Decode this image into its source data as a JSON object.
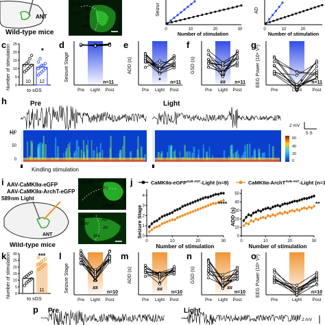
{
  "panel_labels": {
    "c": "c",
    "d": "d",
    "e": "e",
    "f": "f",
    "g": "g",
    "h": "h",
    "i": "i",
    "j": "j",
    "k": "k",
    "l": "l",
    "m": "m",
    "n": "n",
    "o": "o",
    "p": "p"
  },
  "top": {
    "wild_type": "Wild-type mice",
    "ant": "ANT",
    "efp": "EYFP",
    "d3v": "D3V",
    "ad": "AD",
    "av": "AV",
    "am": "AM",
    "seiz_lbl": "Seizur",
    "ad_lbl": "AD",
    "x_label": "Number of stimulation",
    "ticks_a": [
      "0",
      "10",
      "20",
      "30"
    ],
    "ticks_b": [
      "0",
      "10",
      "20"
    ]
  },
  "c": {
    "ylabel": "Number of stimulation",
    "xlabel": "to sGS",
    "n_ctrl": "10",
    "n_exp": "12",
    "sig": "*",
    "yticks": [
      "0",
      "5",
      "10",
      "15",
      "20",
      "25"
    ]
  },
  "d": {
    "ylabel": "Seizure Stage",
    "n": "n=11",
    "xt": [
      "Pre",
      "Light",
      "Post"
    ],
    "yticks": [
      "0",
      "1",
      "2",
      "3",
      "4",
      "5"
    ]
  },
  "e": {
    "ylabel": "ADD (s)",
    "n": "n=11",
    "sig": "*",
    "xt": [
      "Pre",
      "Light",
      "Post"
    ],
    "yticks": [
      "0",
      "20",
      "40",
      "60",
      "80"
    ]
  },
  "f": {
    "ylabel": "GSD (s)",
    "n": "n=11",
    "sig": "**",
    "sig2": "##",
    "xt": [
      "Pre",
      "Light",
      "Post"
    ],
    "yticks": [
      "0",
      "10",
      "20",
      "30",
      "40",
      "50"
    ]
  },
  "g": {
    "ylabel": "EEG Power (10⁴ V²)",
    "n": "n=11",
    "sig": "*",
    "xt": [
      "Pre",
      "Light",
      "Post"
    ],
    "yticks": [
      "0",
      "1",
      "2",
      "3",
      "4",
      "5"
    ]
  },
  "h": {
    "pre": "Pre",
    "light": "Light",
    "hz": "Hz",
    "hz_ticks": [
      "100",
      "50",
      "0"
    ],
    "scale_v": "2 mV",
    "scale_t": "5 S",
    "kindling": "Kindling stimulation",
    "cbar": [
      "60",
      "40",
      "20",
      "0"
    ]
  },
  "i": {
    "virus1": "AAV-CaMKIIα-eGFP",
    "virus2": "AAV-CaMKIIα-ArchT-eGFP",
    "laser_nm": "589",
    "laser_txt": " nm Light",
    "wild_type": "Wild-type mice",
    "ant": "ANT",
    "egfp": "eGFP",
    "ca1": "CA1",
    "dg": "DG",
    "lpmr": "LPMR",
    "d3v": "D3V",
    "ad": "AD",
    "av": "AV",
    "am": "AM"
  },
  "j": {
    "legend1": "CaMKIIα-eGFP",
    "legend1_sup": "SUB-ANT",
    "legend1_tail": "-Light (n=9)",
    "legend2": "CaMKIIα-ArchT",
    "legend2_sup": "SUB-ANT",
    "legend2_tail": "-Light (n=11)",
    "left_ylabel": "Seizure Stage",
    "right_ylabel": "ADD (s)",
    "xlabel": "Number of stimulation",
    "left_sig": "****",
    "right_sig": "**",
    "left_xticks": [
      "0",
      "10",
      "20",
      "30"
    ],
    "right_xticks": [
      "0",
      "10",
      "20",
      "30"
    ],
    "left_yticks": [
      "0",
      "1",
      "2",
      "3",
      "4"
    ],
    "right_yticks": [
      "0",
      "10",
      "20",
      "30",
      "40",
      "50"
    ]
  },
  "k": {
    "ylabel": "Number of stimulation",
    "xlabel": "to sGS",
    "sig": "***",
    "n_exp": "11",
    "yticks": [
      "0",
      "5",
      "10",
      "15",
      "20",
      "25",
      "30"
    ]
  },
  "l": {
    "ylabel": "Seizure Stage",
    "n": "n=10",
    "sig": "**",
    "sig2": "##",
    "xt": [
      "Pre",
      "Light",
      "Post"
    ],
    "yticks": [
      "0",
      "1",
      "2",
      "3",
      "4",
      "5"
    ]
  },
  "m": {
    "ylabel": "ADD (s)",
    "n": "n=10",
    "sig": "*",
    "sig2": "##",
    "xt": [
      "Pre",
      "Light",
      "Post"
    ],
    "yticks": [
      "0",
      "10",
      "20",
      "30",
      "40",
      "50"
    ]
  },
  "n": {
    "ylabel": "GSD (s)",
    "n": "n=10",
    "sig": "**",
    "sig2": "##",
    "xt": [
      "Pre",
      "Light",
      "Post"
    ],
    "yticks": [
      "0",
      "10",
      "20",
      "30",
      "40",
      "50"
    ]
  },
  "o": {
    "ylabel": "EEG Power (10⁴ V²)",
    "n": "n=10",
    "sig": "*",
    "xt": [
      "Pre",
      "Light",
      "Post"
    ],
    "yticks": [
      "0",
      "1",
      "2",
      "3"
    ]
  },
  "p": {
    "pre": "Pre",
    "light": "Light",
    "scale_v": "2 mV"
  },
  "colors": {
    "blue": "#1f3fe0",
    "orange": "#ee8a1e",
    "green": "#22bb22",
    "gray": "#888888"
  },
  "chart_data": [
    {
      "type": "line",
      "panel": "j-left",
      "xlabel": "Number of stimulation",
      "ylabel": "Seizure Stage",
      "xlim": [
        0,
        30
      ],
      "ylim": [
        0,
        4.6
      ],
      "series": [
        {
          "name": "CaMKIIα-eGFP SUB-ANT -Light (n=9)",
          "x": [
            1,
            2,
            3,
            4,
            5,
            6,
            7,
            8,
            9,
            10,
            11,
            12,
            13,
            14,
            15,
            16,
            17,
            18,
            19,
            20,
            21,
            22,
            23,
            24,
            25,
            26,
            27,
            28,
            29,
            30
          ],
          "values": [
            0.9,
            1.2,
            1.4,
            1.5,
            1.7,
            1.9,
            2.0,
            2.1,
            2.2,
            2.3,
            2.5,
            2.6,
            2.7,
            2.9,
            3.0,
            3.1,
            3.2,
            3.3,
            3.4,
            3.5,
            3.6,
            3.7,
            3.8,
            3.8,
            3.9,
            4.0,
            4.1,
            4.1,
            4.2,
            4.2
          ]
        },
        {
          "name": "CaMKIIα-ArchT SUB-ANT -Light (n=11)",
          "x": [
            1,
            2,
            3,
            4,
            5,
            6,
            7,
            8,
            9,
            10,
            11,
            12,
            13,
            14,
            15,
            16,
            17,
            18,
            19,
            20,
            21,
            22,
            23,
            24,
            25,
            26,
            27,
            28,
            29,
            30
          ],
          "values": [
            0.4,
            0.6,
            0.8,
            0.9,
            1.0,
            1.2,
            1.3,
            1.4,
            1.5,
            1.6,
            1.6,
            1.8,
            1.9,
            2.0,
            2.1,
            2.2,
            2.3,
            2.4,
            2.5,
            2.6,
            2.7,
            2.8,
            2.9,
            3.0,
            3.1,
            3.2,
            3.2,
            3.3,
            3.4,
            3.5
          ]
        }
      ]
    },
    {
      "type": "line",
      "panel": "j-right",
      "xlabel": "Number of stimulation",
      "ylabel": "ADD (s)",
      "xlim": [
        0,
        30
      ],
      "ylim": [
        0,
        55
      ],
      "series": [
        {
          "name": "CaMKIIα-eGFP SUB-ANT -Light (n=9)",
          "x": [
            1,
            2,
            3,
            4,
            5,
            6,
            7,
            8,
            9,
            10,
            11,
            12,
            13,
            14,
            15,
            16,
            17,
            18,
            19,
            20,
            21,
            22,
            23,
            24,
            25,
            26,
            27,
            28,
            29,
            30
          ],
          "values": [
            18,
            22,
            25,
            24,
            27,
            28,
            30,
            29,
            31,
            32,
            33,
            32,
            34,
            35,
            36,
            35,
            37,
            38,
            38,
            39,
            40,
            41,
            41,
            42,
            43,
            44,
            44,
            45,
            46,
            47
          ]
        },
        {
          "name": "CaMKIIα-ArchT SUB-ANT -Light (n=11)",
          "x": [
            1,
            2,
            3,
            4,
            5,
            6,
            7,
            8,
            9,
            10,
            11,
            12,
            13,
            14,
            15,
            16,
            17,
            18,
            19,
            20,
            21,
            22,
            23,
            24,
            25,
            26,
            27,
            28,
            29,
            30
          ],
          "values": [
            12,
            15,
            14,
            18,
            17,
            20,
            19,
            21,
            22,
            21,
            24,
            23,
            25,
            24,
            26,
            27,
            26,
            28,
            27,
            29,
            30,
            29,
            31,
            30,
            32,
            33,
            32,
            34,
            33,
            35
          ]
        }
      ]
    },
    {
      "type": "bar",
      "panel": "c",
      "categories": [
        "Ctrl",
        "Light"
      ],
      "values": [
        12,
        10.5
      ],
      "ylim": [
        0,
        25
      ]
    },
    {
      "type": "bar",
      "panel": "k",
      "categories": [
        "Ctrl",
        "ArchT"
      ],
      "values": [
        11,
        22
      ],
      "ylim": [
        0,
        30
      ]
    }
  ]
}
